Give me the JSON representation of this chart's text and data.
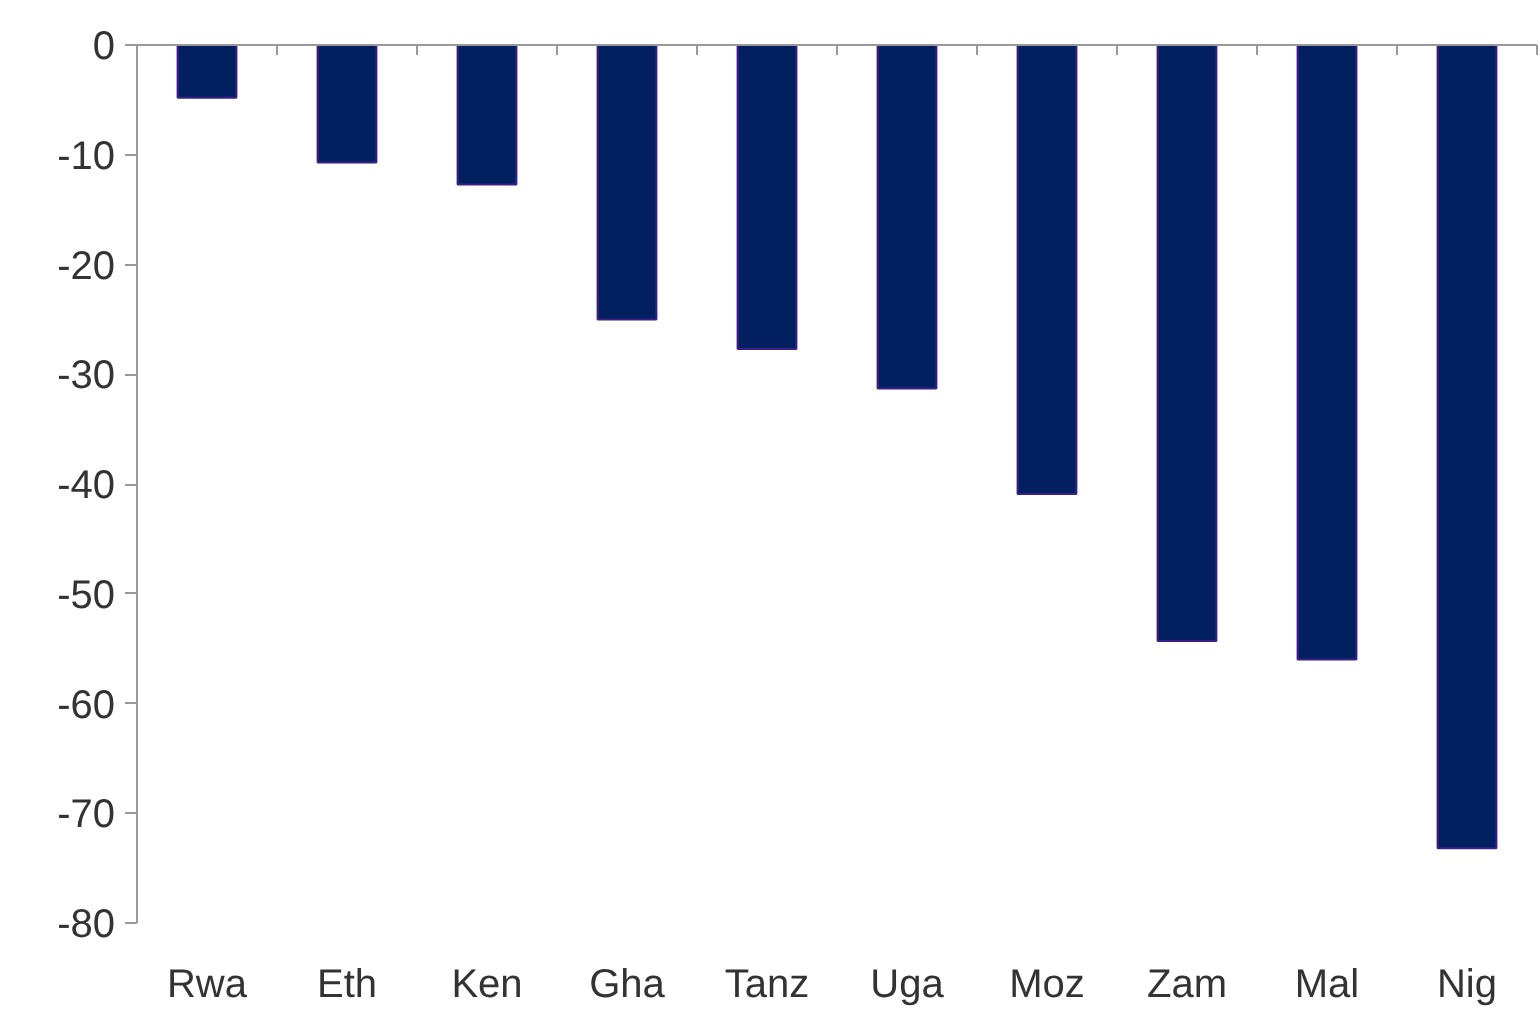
{
  "chart_data": {
    "type": "bar",
    "categories": [
      "Rwa",
      "Eth",
      "Ken",
      "Gha",
      "Tanz",
      "Uga",
      "Moz",
      "Zam",
      "Mal",
      "Nig"
    ],
    "values": [
      -4.8,
      -10.7,
      -12.7,
      -25.0,
      -27.7,
      -31.3,
      -40.9,
      -54.3,
      -56.0,
      -73.2
    ],
    "color": "#022060",
    "ylim": [
      -80,
      0
    ],
    "yticks": [
      -80,
      -70,
      -60,
      -50,
      -40,
      -30,
      -20,
      -10,
      0
    ],
    "grid": false
  }
}
